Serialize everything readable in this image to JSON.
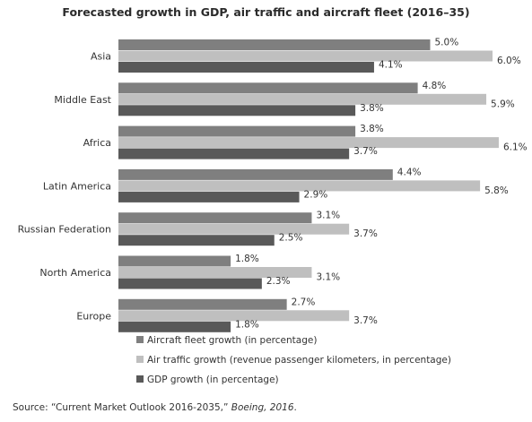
{
  "chart_data": {
    "type": "bar",
    "orientation": "horizontal",
    "title": "Forecasted growth in GDP, air traffic and aircraft fleet (2016–35)",
    "categories": [
      "Asia",
      "Middle East",
      "Africa",
      "Latin America",
      "Russian Federation",
      "North America",
      "Europe"
    ],
    "series": [
      {
        "name": "Aircraft fleet growth (in percentage)",
        "color": "#7f7f7f",
        "values": [
          5.0,
          4.8,
          3.8,
          4.4,
          3.1,
          1.8,
          2.7
        ],
        "labels": [
          "5.0%",
          "4.8%",
          "3.8%",
          "4.4%",
          "3.1%",
          "1.8%",
          "2.7%"
        ]
      },
      {
        "name": "Air traffic growth (revenue passenger kilometers, in percentage)",
        "color": "#bfbfbf",
        "values": [
          6.0,
          5.9,
          6.1,
          5.8,
          3.7,
          3.1,
          3.7
        ],
        "labels": [
          "6.0%",
          "5.9%",
          "6.1%",
          "5.8%",
          "3.7%",
          "3.1%",
          "3.7%"
        ]
      },
      {
        "name": "GDP growth (in percentage)",
        "color": "#595959",
        "values": [
          4.1,
          3.8,
          3.7,
          2.9,
          2.5,
          2.3,
          1.8
        ],
        "labels": [
          "4.1%",
          "3.8%",
          "3.7%",
          "2.9%",
          "2.5%",
          "2.3%",
          "1.8%"
        ]
      }
    ],
    "xlim": [
      0,
      6.1
    ],
    "grid": false,
    "legend_position": "bottom"
  },
  "source": {
    "prefix": "Source: “Current Market Outlook 2016-2035,” ",
    "italic": "Boeing, 2016",
    "suffix": "."
  }
}
